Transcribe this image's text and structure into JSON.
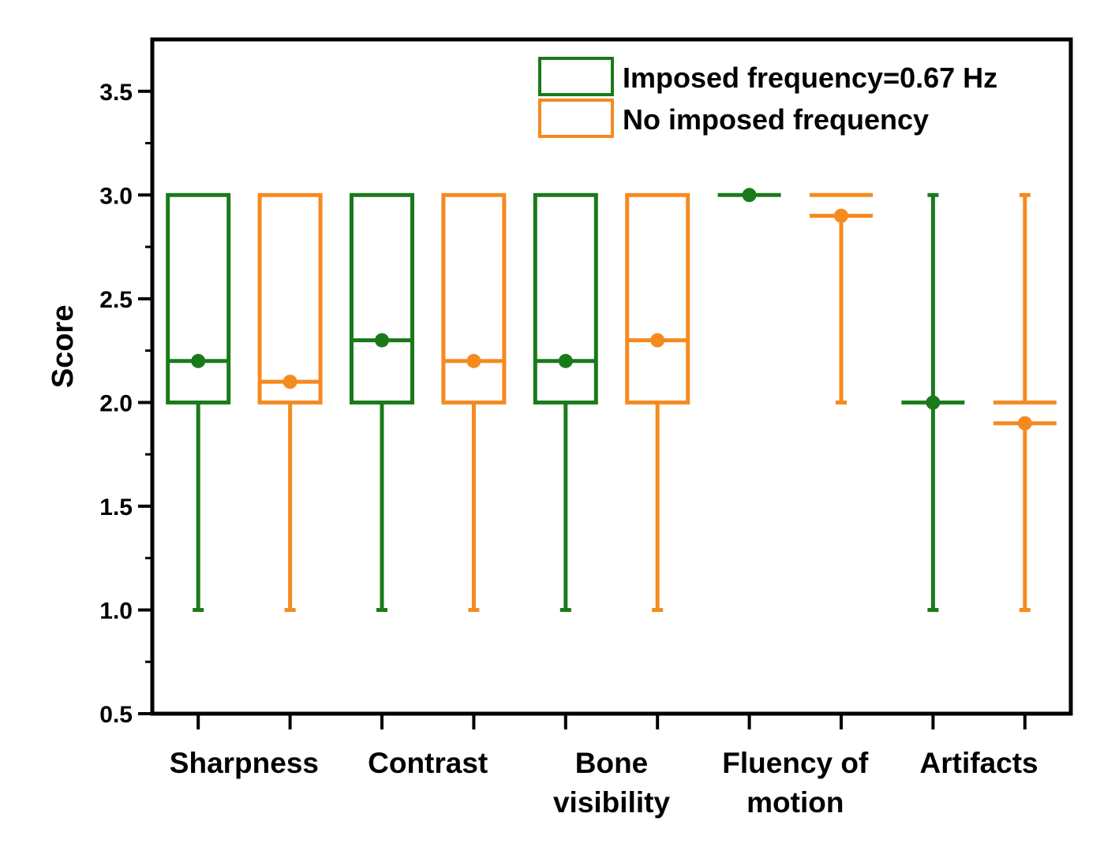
{
  "chart_data": {
    "type": "box",
    "title": "",
    "xlabel": "",
    "ylabel": "Score",
    "ylim": [
      0.5,
      3.75
    ],
    "yticks": [
      0.5,
      1.0,
      1.5,
      2.0,
      2.5,
      3.0,
      3.5
    ],
    "ytick_labels": [
      "0.5",
      "1.0",
      "1.5",
      "2.0",
      "2.5",
      "3.0",
      "3.5"
    ],
    "categories": [
      {
        "line1": "Sharpness",
        "line2": ""
      },
      {
        "line1": "Contrast",
        "line2": ""
      },
      {
        "line1": "Bone",
        "line2": "visibility"
      },
      {
        "line1": "Fluency of",
        "line2": "motion"
      },
      {
        "line1": "Artifacts",
        "line2": ""
      }
    ],
    "legend_position": "top-right",
    "series": [
      {
        "name": "Imposed frequency=0.67 Hz",
        "color": "#1a7a1a",
        "boxes": [
          {
            "min": 1,
            "q1": 2,
            "median": 2.2,
            "q3": 3,
            "max": 3,
            "mean": 2.2
          },
          {
            "min": 1,
            "q1": 2,
            "median": 2.3,
            "q3": 3,
            "max": 3,
            "mean": 2.3
          },
          {
            "min": 1,
            "q1": 2,
            "median": 2.2,
            "q3": 3,
            "max": 3,
            "mean": 2.2
          },
          {
            "min": 3,
            "q1": 3,
            "median": 3,
            "q3": 3,
            "max": 3,
            "mean": 3.0
          },
          {
            "min": 1,
            "q1": 2,
            "median": 2,
            "q3": 2,
            "max": 3,
            "mean": 2.0
          }
        ]
      },
      {
        "name": "No imposed frequency",
        "color": "#f58a1f",
        "boxes": [
          {
            "min": 1,
            "q1": 2,
            "median": 2.1,
            "q3": 3,
            "max": 3,
            "mean": 2.1
          },
          {
            "min": 1,
            "q1": 2,
            "median": 2.2,
            "q3": 3,
            "max": 3,
            "mean": 2.2
          },
          {
            "min": 1,
            "q1": 2,
            "median": 2.3,
            "q3": 3,
            "max": 3,
            "mean": 2.3
          },
          {
            "min": 2,
            "q1": 2.9,
            "median": 3,
            "q3": 3,
            "max": 3,
            "mean": 2.9
          },
          {
            "min": 1,
            "q1": 1.9,
            "median": 2,
            "q3": 2,
            "max": 3,
            "mean": 1.9
          }
        ]
      }
    ]
  }
}
